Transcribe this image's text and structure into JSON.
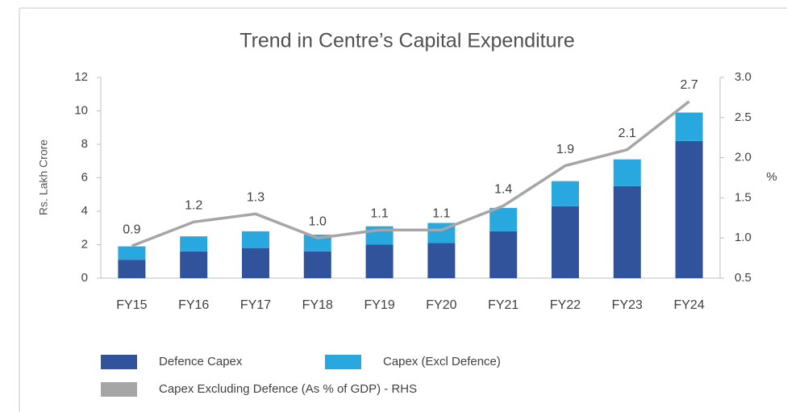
{
  "chart_data": {
    "type": "bar",
    "title": "Trend in Centre’s Capital Expenditure",
    "y_label": "Rs. Lakh Crore",
    "y2_label": "%",
    "categories": [
      "FY15",
      "FY16",
      "FY17",
      "FY18",
      "FY19",
      "FY20",
      "FY21",
      "FY22",
      "FY23",
      "FY24"
    ],
    "stacked": true,
    "series": [
      {
        "name": "Defence Capex",
        "color": "#30539c",
        "values": [
          1.1,
          1.6,
          1.8,
          1.6,
          2.0,
          2.1,
          2.8,
          4.3,
          5.5,
          8.2
        ]
      },
      {
        "name": "Capex (Excl Defence)",
        "color": "#29a8e0",
        "values": [
          0.8,
          0.9,
          1.0,
          1.0,
          1.1,
          1.2,
          1.4,
          1.5,
          1.6,
          1.7
        ]
      },
      {
        "name": "Capex Excluding Defence (As % of GDP) - RHS",
        "color": "#a6a6a6",
        "type": "line",
        "axis": "y2",
        "values": [
          0.9,
          1.2,
          1.3,
          1.0,
          1.1,
          1.1,
          1.4,
          1.9,
          2.1,
          2.7
        ],
        "value_labels": [
          "0.9",
          "1.2",
          "1.3",
          "1.0",
          "1.1",
          "1.1",
          "1.4",
          "1.9",
          "2.1",
          "2.7"
        ]
      }
    ],
    "ylim": [
      0,
      12
    ],
    "yticks": [
      0,
      2,
      4,
      6,
      8,
      10,
      12
    ],
    "y2lim": [
      0.5,
      3.0
    ],
    "y2ticks": [
      {
        "value": 3.0,
        "label": "3.0"
      },
      2.5,
      {
        "value": 2.0,
        "label": "2.0"
      },
      1.5,
      {
        "value": 1.0,
        "label": "1.0"
      },
      0.5
    ],
    "legend": "bottom"
  }
}
